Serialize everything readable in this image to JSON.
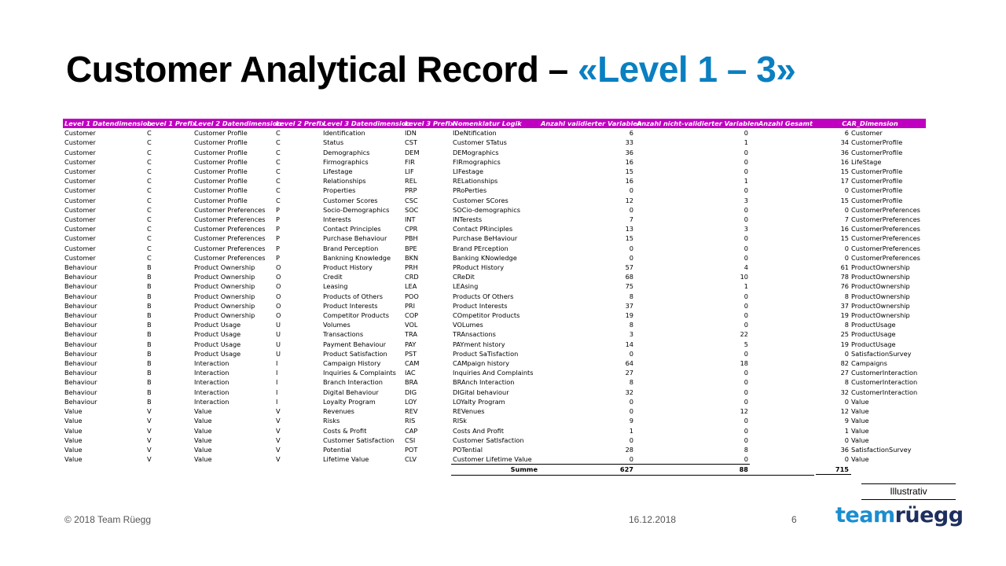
{
  "title": {
    "main": "Customer Analytical Record – ",
    "accent": "«Level 1 – 3»"
  },
  "table": {
    "headers": [
      "Level 1 Datendimension",
      "Level 1 Prefix",
      "Level 2 Datendimension",
      "Level 2 Prefix",
      "Level 3 Datendimension",
      "Level 3 Prefix",
      "Nomenklatur Logik",
      "Anzahl validierter Variablen",
      "Anzahl nicht-validierter Variablen",
      "Anzahl Gesamt",
      "CAR_Dimension"
    ],
    "rows": [
      [
        "Customer",
        "C",
        "Customer Profile",
        "C",
        "Identification",
        "IDN",
        "IDeNtification",
        "6",
        "0",
        "6",
        "Customer"
      ],
      [
        "Customer",
        "C",
        "Customer Profile",
        "C",
        "Status",
        "CST",
        "Customer STatus",
        "33",
        "1",
        "34",
        "CustomerProfile"
      ],
      [
        "Customer",
        "C",
        "Customer Profile",
        "C",
        "Demographics",
        "DEM",
        "DEMographics",
        "36",
        "0",
        "36",
        "CustomerProfile"
      ],
      [
        "Customer",
        "C",
        "Customer Profile",
        "C",
        "Firmographics",
        "FIR",
        "FIRmographics",
        "16",
        "0",
        "16",
        "LifeStage"
      ],
      [
        "Customer",
        "C",
        "Customer Profile",
        "C",
        "Lifestage",
        "LIF",
        "LIFestage",
        "15",
        "0",
        "15",
        "CustomerProfile"
      ],
      [
        "Customer",
        "C",
        "Customer Profile",
        "C",
        "Relationships",
        "REL",
        "RELationships",
        "16",
        "1",
        "17",
        "CustomerProfile"
      ],
      [
        "Customer",
        "C",
        "Customer Profile",
        "C",
        "Properties",
        "PRP",
        "PRoPerties",
        "0",
        "0",
        "0",
        "CustomerProfile"
      ],
      [
        "Customer",
        "C",
        "Customer Profile",
        "C",
        "Customer Scores",
        "CSC",
        "Customer SCores",
        "12",
        "3",
        "15",
        "CustomerProfile"
      ],
      [
        "Customer",
        "C",
        "Customer Preferences",
        "P",
        "Socio-Demographics",
        "SOC",
        "SOCio-demographics",
        "0",
        "0",
        "0",
        "CustomerPreferences"
      ],
      [
        "Customer",
        "C",
        "Customer Preferences",
        "P",
        "Interests",
        "INT",
        "INTerests",
        "7",
        "0",
        "7",
        "CustomerPreferences"
      ],
      [
        "Customer",
        "C",
        "Customer Preferences",
        "P",
        "Contact Principles",
        "CPR",
        "Contact PRinciples",
        "13",
        "3",
        "16",
        "CustomerPreferences"
      ],
      [
        "Customer",
        "C",
        "Customer Preferences",
        "P",
        "Purchase Behaviour",
        "PBH",
        "Purchase BeHaviour",
        "15",
        "0",
        "15",
        "CustomerPreferences"
      ],
      [
        "Customer",
        "C",
        "Customer Preferences",
        "P",
        "Brand Perception",
        "BPE",
        "Brand PErception",
        "0",
        "0",
        "0",
        "CustomerPreferences"
      ],
      [
        "Customer",
        "C",
        "Customer Preferences",
        "P",
        "Bankning Knowledge",
        "BKN",
        "Banking KNowledge",
        "0",
        "0",
        "0",
        "CustomerPreferences"
      ],
      [
        "Behaviour",
        "B",
        "Product Ownership",
        "O",
        "Product History",
        "PRH",
        "PRoduct History",
        "57",
        "4",
        "61",
        "ProductOwnership"
      ],
      [
        "Behaviour",
        "B",
        "Product Ownership",
        "O",
        "Credit",
        "CRD",
        "CReDit",
        "68",
        "10",
        "78",
        "ProductOwnership"
      ],
      [
        "Behaviour",
        "B",
        "Product Ownership",
        "O",
        "Leasing",
        "LEA",
        "LEAsing",
        "75",
        "1",
        "76",
        "ProductOwnership"
      ],
      [
        "Behaviour",
        "B",
        "Product Ownership",
        "O",
        "Products of Others",
        "POO",
        "Products Of Others",
        "8",
        "0",
        "8",
        "ProductOwnership"
      ],
      [
        "Behaviour",
        "B",
        "Product Ownership",
        "O",
        "Product Interests",
        "PRI",
        "Product Interests",
        "37",
        "0",
        "37",
        "ProductOwnership"
      ],
      [
        "Behaviour",
        "B",
        "Product Ownership",
        "O",
        "Competitor Products",
        "COP",
        "COmpetitor Products",
        "19",
        "0",
        "19",
        "ProductOwnership"
      ],
      [
        "Behaviour",
        "B",
        "Product Usage",
        "U",
        "Volumes",
        "VOL",
        "VOLumes",
        "8",
        "0",
        "8",
        "ProductUsage"
      ],
      [
        "Behaviour",
        "B",
        "Product Usage",
        "U",
        "Transactions",
        "TRA",
        "TRAnsactions",
        "3",
        "22",
        "25",
        "ProductUsage"
      ],
      [
        "Behaviour",
        "B",
        "Product Usage",
        "U",
        "Payment Behaviour",
        "PAY",
        "PAYment history",
        "14",
        "5",
        "19",
        "ProductUsage"
      ],
      [
        "Behaviour",
        "B",
        "Product Usage",
        "U",
        "Product Satisfaction",
        "PST",
        "Product SaTisfaction",
        "0",
        "0",
        "0",
        "SatisfactionSurvey"
      ],
      [
        "Behaviour",
        "B",
        "Interaction",
        "I",
        "Campaign History",
        "CAM",
        "CAMpaign history",
        "64",
        "18",
        "82",
        "Campaigns"
      ],
      [
        "Behaviour",
        "B",
        "Interaction",
        "I",
        "Inquiries & Complaints",
        "IAC",
        "Inquiries And Complaints",
        "27",
        "0",
        "27",
        "CustomerInteraction"
      ],
      [
        "Behaviour",
        "B",
        "Interaction",
        "I",
        "Branch Interaction",
        "BRA",
        "BRAnch Interaction",
        "8",
        "0",
        "8",
        "CustomerInteraction"
      ],
      [
        "Behaviour",
        "B",
        "Interaction",
        "I",
        "Digital Behaviour",
        "DIG",
        "DIGital behaviour",
        "32",
        "0",
        "32",
        "CustomerInteraction"
      ],
      [
        "Behaviour",
        "B",
        "Interaction",
        "I",
        "Loyalty Program",
        "LOY",
        "LOYalty Program",
        "0",
        "0",
        "0",
        "Value"
      ],
      [
        "Value",
        "V",
        "Value",
        "V",
        "Revenues",
        "REV",
        "REVenues",
        "0",
        "12",
        "12",
        "Value"
      ],
      [
        "Value",
        "V",
        "Value",
        "V",
        "Risks",
        "RIS",
        "RISk",
        "9",
        "0",
        "9",
        "Value"
      ],
      [
        "Value",
        "V",
        "Value",
        "V",
        "Costs & Profit",
        "CAP",
        "Costs And Profit",
        "1",
        "0",
        "1",
        "Value"
      ],
      [
        "Value",
        "V",
        "Value",
        "V",
        "Customer Satisfaction",
        "CSI",
        "Customer SatIsfaction",
        "0",
        "0",
        "0",
        "Value"
      ],
      [
        "Value",
        "V",
        "Value",
        "V",
        "Potential",
        "POT",
        "POTential",
        "28",
        "8",
        "36",
        "SatisfactionSurvey"
      ],
      [
        "Value",
        "V",
        "Value",
        "V",
        "Lifetime Value",
        "CLV",
        "Customer Lifetime Value",
        "0",
        "0",
        "0",
        "Value"
      ]
    ],
    "summary": {
      "label": "Summe",
      "validated": "627",
      "non_validated": "88",
      "total": "715"
    }
  },
  "illustrativ": "Illustrativ",
  "footer": {
    "copyright": "© 2018 Team Rüegg",
    "date": "16.12.2018",
    "page": "6"
  },
  "logo": {
    "part1": "team",
    "part2": "rüegg"
  },
  "colors": {
    "header_bg": "#c000c0",
    "accent": "#0a7fc1",
    "logo_light": "#1a8ed0",
    "logo_dark": "#1d2f5e"
  }
}
